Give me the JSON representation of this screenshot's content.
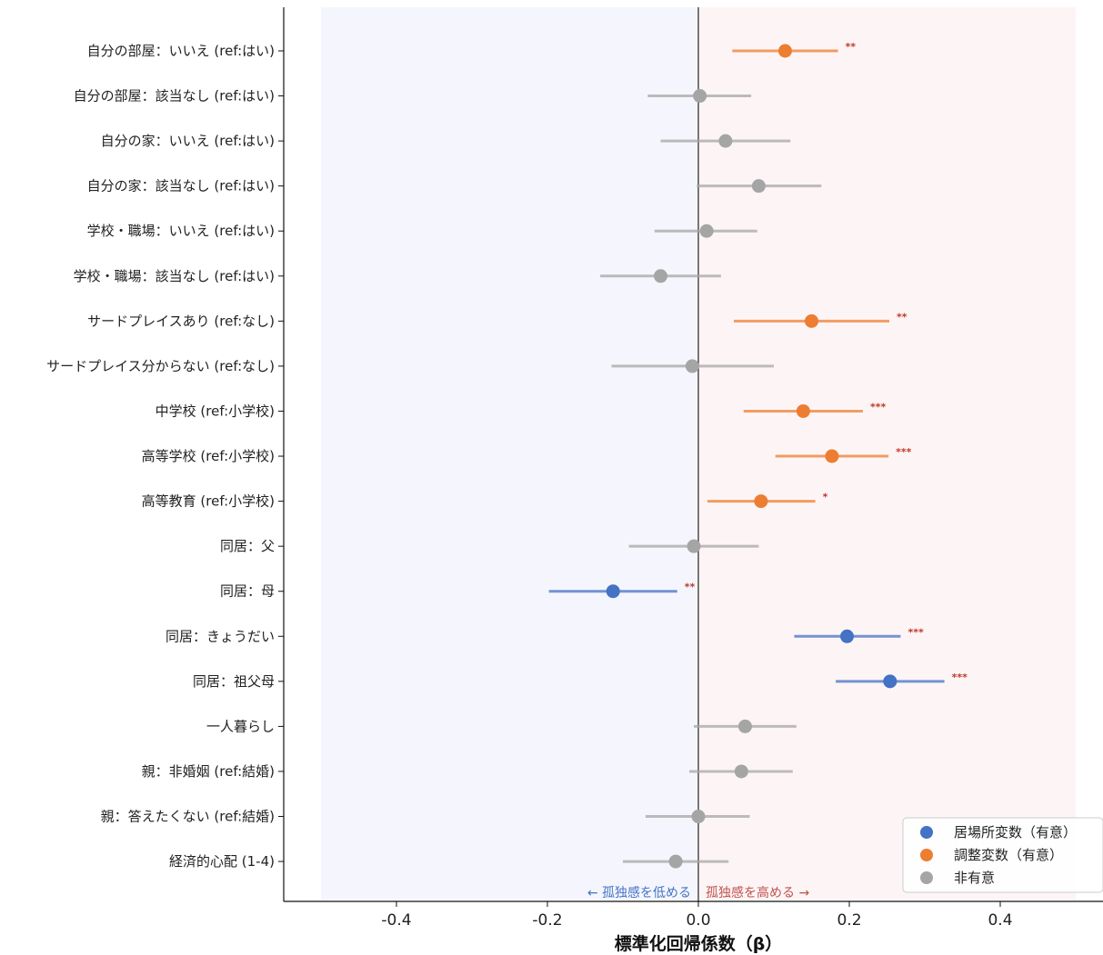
{
  "chart_data": {
    "type": "scatter",
    "title": "",
    "xlabel": "標準化回帰係数（β）",
    "ylabel": "",
    "xlim": [
      -0.55,
      0.52
    ],
    "xticks": [
      -0.4,
      -0.2,
      0.0,
      0.2,
      0.4
    ],
    "xtick_labels": [
      "-0.4",
      "-0.2",
      "0.0",
      "0.2",
      "0.4"
    ],
    "grid": false,
    "shaded_regions": [
      {
        "from": -0.5,
        "to": 0.0,
        "color": "#f5f6fd"
      },
      {
        "from": 0.0,
        "to": 0.5,
        "color": "#fdf5f5"
      }
    ],
    "reference_line": 0.0,
    "direction_notes": {
      "left": "← 孤独感を低める",
      "right": "孤独感を高める →"
    },
    "colors": {
      "place": "#4472c4",
      "control": "#ed7d31",
      "ns": "#a5a5a5"
    },
    "legend": {
      "position": "lower-right",
      "entries": [
        {
          "key": "place",
          "label": "居場所変数（有意）"
        },
        {
          "key": "control",
          "label": "調整変数（有意）"
        },
        {
          "key": "ns",
          "label": "非有意"
        }
      ]
    },
    "items": [
      {
        "label": "自分の部屋：いいえ (ref:はい)",
        "beta": 0.115,
        "lo": 0.045,
        "hi": 0.185,
        "group": "control",
        "sig": "**"
      },
      {
        "label": "自分の部屋：該当なし (ref:はい)",
        "beta": 0.002,
        "lo": -0.067,
        "hi": 0.07,
        "group": "ns",
        "sig": ""
      },
      {
        "label": "自分の家：いいえ (ref:はい)",
        "beta": 0.036,
        "lo": -0.05,
        "hi": 0.122,
        "group": "ns",
        "sig": ""
      },
      {
        "label": "自分の家：該当なし (ref:はい)",
        "beta": 0.08,
        "lo": -0.002,
        "hi": 0.163,
        "group": "ns",
        "sig": ""
      },
      {
        "label": "学校・職場：いいえ (ref:はい)",
        "beta": 0.011,
        "lo": -0.058,
        "hi": 0.078,
        "group": "ns",
        "sig": ""
      },
      {
        "label": "学校・職場：該当なし (ref:はい)",
        "beta": -0.05,
        "lo": -0.13,
        "hi": 0.03,
        "group": "ns",
        "sig": ""
      },
      {
        "label": "サードプレイスあり (ref:なし)",
        "beta": 0.15,
        "lo": 0.047,
        "hi": 0.253,
        "group": "control",
        "sig": "**"
      },
      {
        "label": "サードプレイス分からない (ref:なし)",
        "beta": -0.008,
        "lo": -0.115,
        "hi": 0.1,
        "group": "ns",
        "sig": ""
      },
      {
        "label": "中学校 (ref:小学校)",
        "beta": 0.139,
        "lo": 0.06,
        "hi": 0.218,
        "group": "control",
        "sig": "***"
      },
      {
        "label": "高等学校 (ref:小学校)",
        "beta": 0.177,
        "lo": 0.102,
        "hi": 0.252,
        "group": "control",
        "sig": "***"
      },
      {
        "label": "高等教育 (ref:小学校)",
        "beta": 0.083,
        "lo": 0.012,
        "hi": 0.155,
        "group": "control",
        "sig": "*"
      },
      {
        "label": "同居：父",
        "beta": -0.006,
        "lo": -0.092,
        "hi": 0.08,
        "group": "ns",
        "sig": ""
      },
      {
        "label": "同居：母",
        "beta": -0.113,
        "lo": -0.198,
        "hi": -0.028,
        "group": "place",
        "sig": "**"
      },
      {
        "label": "同居：きょうだい",
        "beta": 0.197,
        "lo": 0.127,
        "hi": 0.268,
        "group": "place",
        "sig": "***"
      },
      {
        "label": "同居：祖父母",
        "beta": 0.254,
        "lo": 0.182,
        "hi": 0.326,
        "group": "place",
        "sig": "***"
      },
      {
        "label": "一人暮らし",
        "beta": 0.062,
        "lo": -0.006,
        "hi": 0.13,
        "group": "ns",
        "sig": ""
      },
      {
        "label": "親：非婚姻 (ref:結婚)",
        "beta": 0.057,
        "lo": -0.012,
        "hi": 0.125,
        "group": "ns",
        "sig": ""
      },
      {
        "label": "親：答えたくない (ref:結婚)",
        "beta": 0.0,
        "lo": -0.07,
        "hi": 0.068,
        "group": "ns",
        "sig": ""
      },
      {
        "label": "経済的心配 (1-4)",
        "beta": -0.03,
        "lo": -0.1,
        "hi": 0.04,
        "group": "ns",
        "sig": ""
      }
    ]
  }
}
